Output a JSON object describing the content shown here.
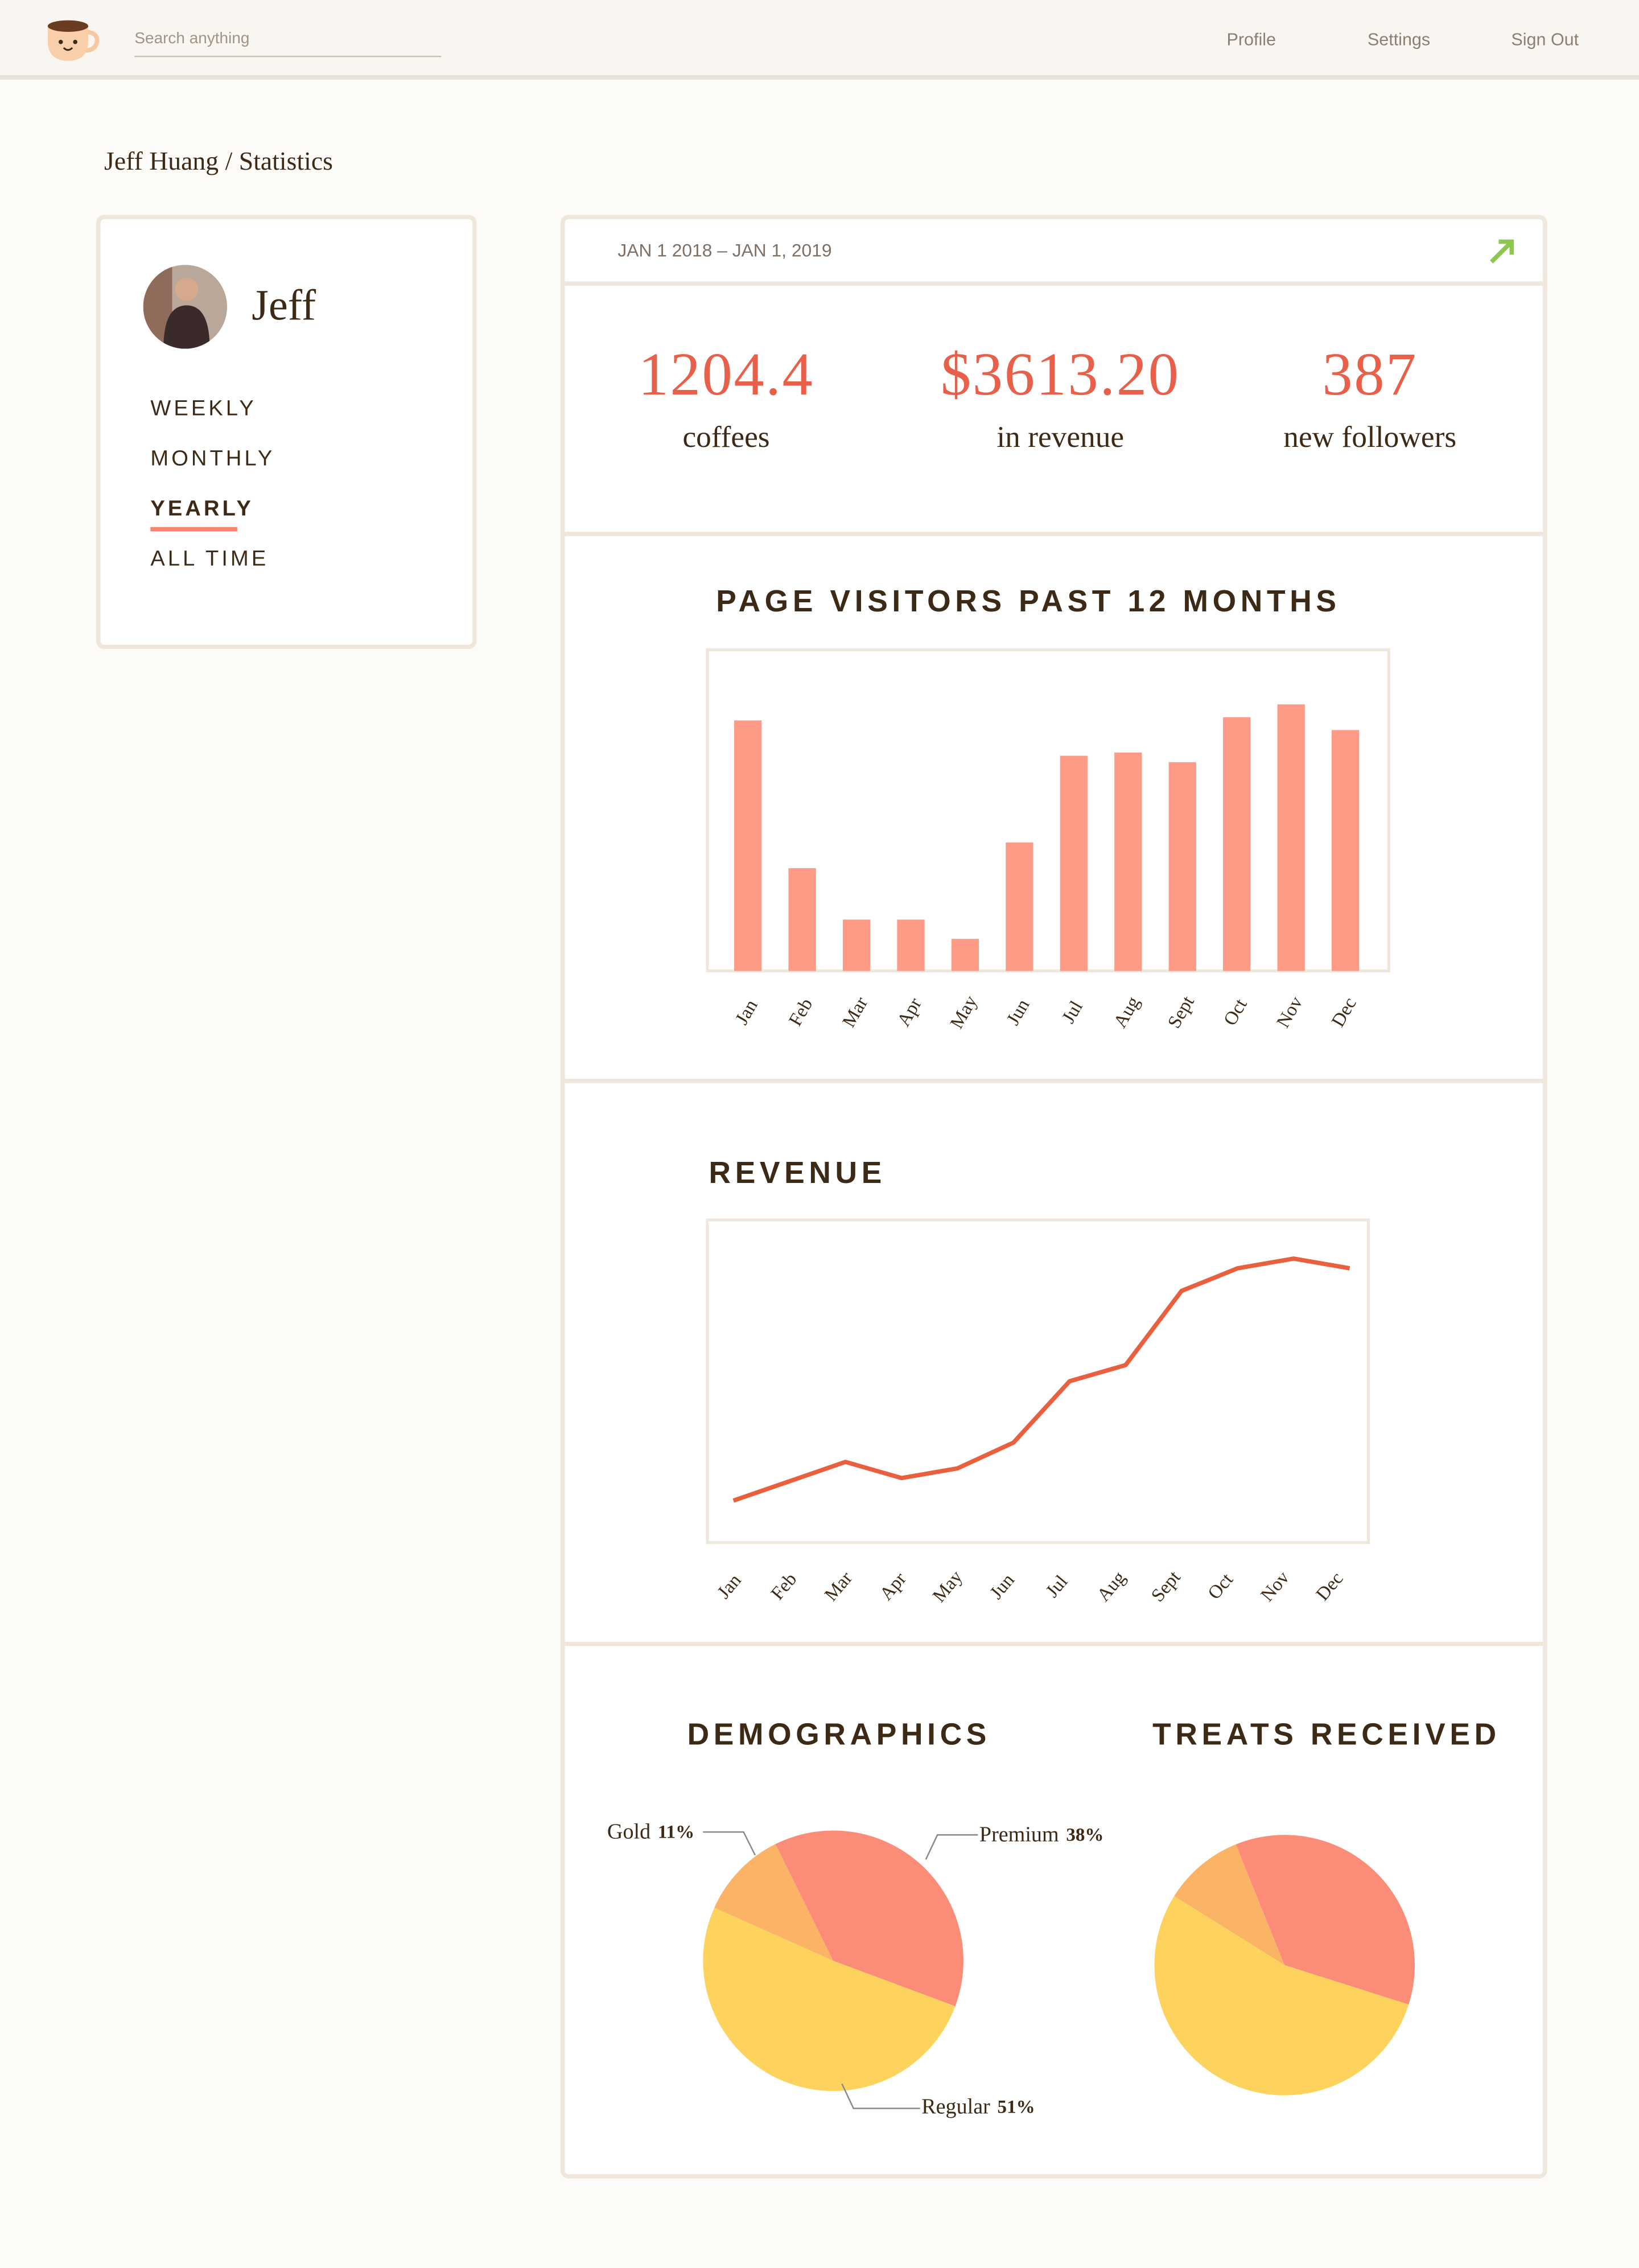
{
  "nav": {
    "search_placeholder": "Search anything",
    "links": [
      "Profile",
      "Settings",
      "Sign Out"
    ]
  },
  "breadcrumb": "Jeff Huang / Statistics",
  "sidebar": {
    "name": "Jeff",
    "periods": [
      "WEEKLY",
      "MONTHLY",
      "YEARLY",
      "ALL TIME"
    ],
    "selected": "YEARLY"
  },
  "date_range": "JAN 1 2018 – JAN 1, 2019",
  "stats": [
    {
      "value": "1204.4",
      "label": "coffees"
    },
    {
      "value": "$3613.20",
      "label": "in revenue"
    },
    {
      "value": "387",
      "label": "new followers"
    }
  ],
  "chart_data": [
    {
      "type": "bar",
      "title": "PAGE VISITORS PAST 12 MONTHS",
      "categories": [
        "Jan",
        "Feb",
        "Mar",
        "Apr",
        "May",
        "Jun",
        "Jul",
        "Aug",
        "Sept",
        "Oct",
        "Nov",
        "Dec"
      ],
      "values": [
        78,
        32,
        16,
        16,
        10,
        40,
        67,
        68,
        65,
        79,
        83,
        75
      ],
      "color": "#fd9b86",
      "ylim": [
        0,
        100
      ]
    },
    {
      "type": "line",
      "title": "REVENUE",
      "categories": [
        "Jan",
        "Feb",
        "Mar",
        "Apr",
        "May",
        "Jun",
        "Jul",
        "Aug",
        "Sept",
        "Oct",
        "Nov",
        "Dec"
      ],
      "values": [
        13,
        19,
        25,
        20,
        23,
        31,
        50,
        55,
        78,
        85,
        88,
        85
      ],
      "color": "#e9603f",
      "ylim": [
        0,
        100
      ]
    },
    {
      "type": "pie",
      "title": "DEMOGRAPHICS",
      "categories": [
        "Gold",
        "Premium",
        "Regular"
      ],
      "values": [
        11,
        38,
        51
      ],
      "value_labels": [
        "11%",
        "38%",
        "51%"
      ],
      "colors": [
        "#fbb466",
        "#fa8c78",
        "#fdd35e"
      ]
    },
    {
      "type": "pie",
      "title": "TREATS RECEIVED",
      "values": [
        10,
        36,
        54
      ],
      "colors": [
        "#fbb466",
        "#fa8c78",
        "#fdd35e"
      ]
    }
  ]
}
